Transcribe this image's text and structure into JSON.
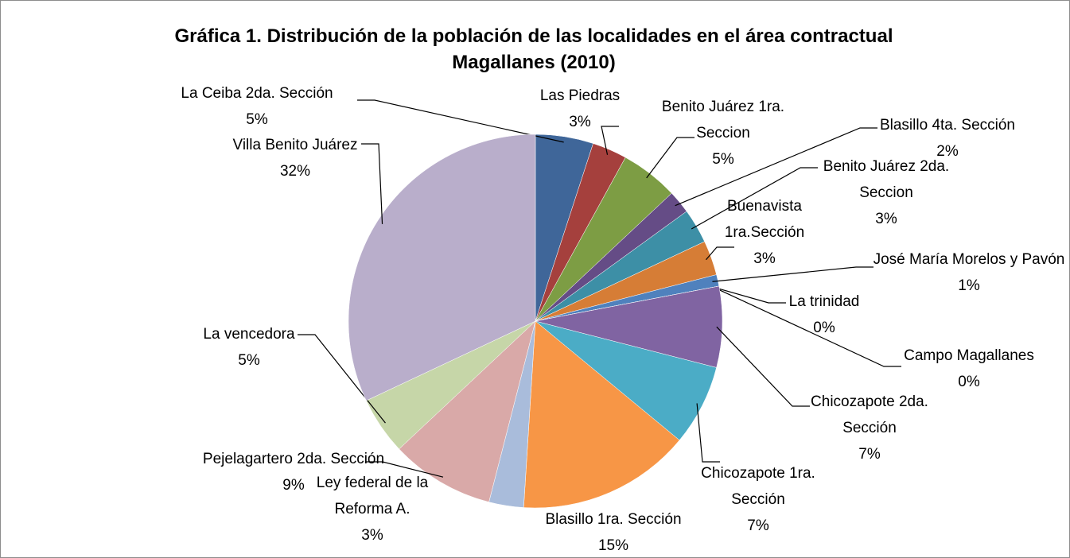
{
  "chart_data": {
    "type": "pie",
    "title": "Gráfica 1. Distribución de la población de las localidades en el área contractual Magallanes (2010)",
    "labels": [
      "La Ceiba 2da. Sección",
      "Las Piedras",
      "Benito Juárez 1ra. Seccion",
      "Blasillo 4ta. Sección",
      "Benito Juárez 2da. Seccion",
      "Buenavista 1ra.Sección",
      "José María Morelos y Pavón",
      "La trinidad",
      "Campo Magallanes",
      "Chicozapote 2da. Sección",
      "Chicozapote 1ra. Sección",
      "Blasillo 1ra. Sección",
      "Ley federal de la Reforma A.",
      "Pejelagartero 2da. Sección",
      "La vencedora",
      "Villa Benito Juárez"
    ],
    "values": [
      5,
      3,
      5,
      2,
      3,
      3,
      1,
      0,
      0,
      7,
      7,
      15,
      3,
      9,
      5,
      32
    ],
    "value_labels": [
      "5%",
      "3%",
      "5%",
      "2%",
      "3%",
      "3%",
      "1%",
      "0%",
      "0%",
      "7%",
      "7%",
      "15%",
      "3%",
      "9%",
      "5%",
      "32%"
    ],
    "colors": [
      "#3f6699",
      "#a5403d",
      "#7d9d44",
      "#654c86",
      "#3d8fa6",
      "#d67d36",
      "#4f81bd",
      "#c0504d",
      "#9bbb59",
      "#8064a2",
      "#4bacc6",
      "#f79646",
      "#a9bcdb",
      "#d9a9a8",
      "#c6d6a8",
      "#b9aecb"
    ]
  }
}
